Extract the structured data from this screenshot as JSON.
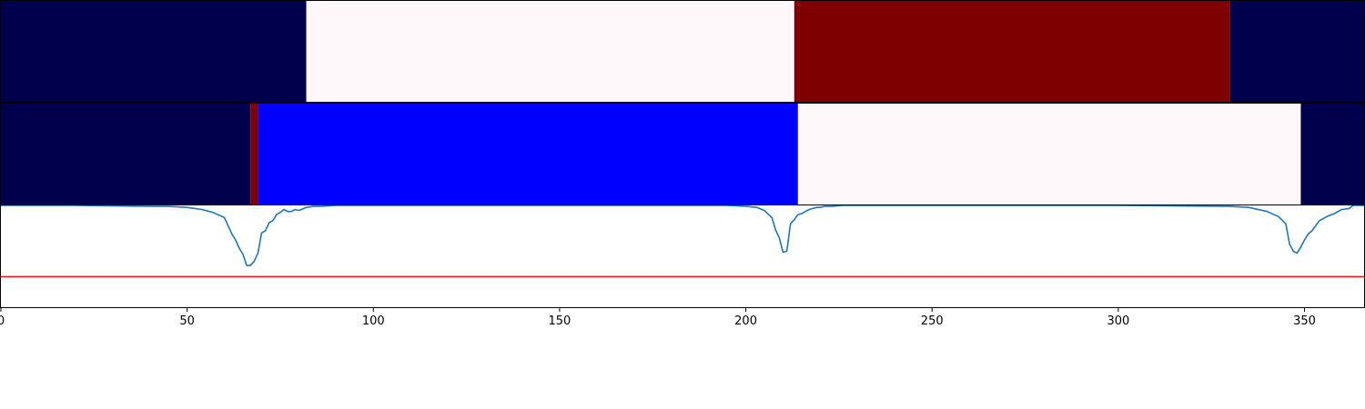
{
  "chart_data": [
    {
      "type": "heatmap",
      "x_range": [
        0,
        366
      ],
      "segments": [
        {
          "start": 0,
          "end": 82,
          "color": "#00004c"
        },
        {
          "start": 82,
          "end": 213,
          "color": "#fff8fb"
        },
        {
          "start": 213,
          "end": 330,
          "color": "#7f0000"
        },
        {
          "start": 330,
          "end": 366,
          "color": "#00004c"
        }
      ]
    },
    {
      "type": "heatmap",
      "x_range": [
        0,
        366
      ],
      "segments": [
        {
          "start": 0,
          "end": 67,
          "color": "#00004c"
        },
        {
          "start": 67,
          "end": 69,
          "color": "#7f0000"
        },
        {
          "start": 69,
          "end": 214,
          "color": "#0000ff"
        },
        {
          "start": 214,
          "end": 349,
          "color": "#fff8fb"
        },
        {
          "start": 349,
          "end": 366,
          "color": "#00004c"
        }
      ]
    },
    {
      "type": "line",
      "xlim": [
        0,
        366
      ],
      "ylim": [
        -1.0,
        0.0
      ],
      "grid": false,
      "xticks": [
        0,
        50,
        100,
        150,
        200,
        250,
        300,
        350
      ],
      "threshold": {
        "y": -0.7,
        "color": "#e41a1c"
      },
      "series": [
        {
          "color": "#1f77b4",
          "x": [
            0,
            20,
            40,
            45,
            50,
            54,
            57,
            60,
            62,
            63,
            64,
            65,
            66,
            67,
            68,
            69,
            70,
            71,
            72,
            73,
            74,
            75,
            76,
            77,
            78,
            79,
            80,
            82,
            84,
            86,
            90,
            100,
            150,
            195,
            200,
            203,
            205,
            207,
            208,
            209,
            210,
            211,
            212,
            213,
            214,
            215,
            216,
            217,
            218,
            219,
            220,
            221,
            223,
            226,
            230,
            300,
            330,
            335,
            340,
            343,
            345,
            346,
            347,
            348,
            349,
            350,
            351,
            352,
            353,
            354,
            356,
            358,
            360,
            362,
            363,
            366
          ],
          "y": [
            0.0,
            0.0,
            -0.01,
            -0.01,
            -0.02,
            -0.04,
            -0.07,
            -0.12,
            -0.28,
            -0.34,
            -0.42,
            -0.48,
            -0.59,
            -0.59,
            -0.55,
            -0.47,
            -0.27,
            -0.25,
            -0.17,
            -0.15,
            -0.09,
            -0.07,
            -0.04,
            -0.06,
            -0.06,
            -0.04,
            -0.05,
            -0.02,
            -0.01,
            -0.01,
            0.0,
            0.0,
            0.0,
            0.0,
            -0.01,
            -0.02,
            -0.05,
            -0.12,
            -0.24,
            -0.32,
            -0.46,
            -0.45,
            -0.18,
            -0.14,
            -0.09,
            -0.08,
            -0.06,
            -0.04,
            -0.03,
            -0.02,
            -0.02,
            -0.01,
            -0.01,
            0.0,
            0.0,
            0.0,
            -0.01,
            -0.02,
            -0.06,
            -0.11,
            -0.18,
            -0.38,
            -0.45,
            -0.47,
            -0.41,
            -0.34,
            -0.28,
            -0.25,
            -0.2,
            -0.15,
            -0.11,
            -0.08,
            -0.04,
            -0.03,
            0.0,
            0.0
          ]
        }
      ]
    }
  ]
}
